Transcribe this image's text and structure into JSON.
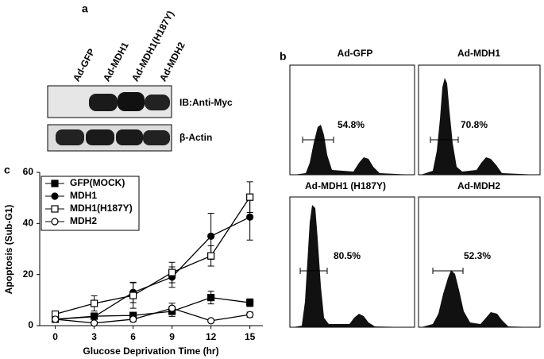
{
  "panel_a": {
    "label": "a",
    "lanes": [
      "Ad-GFP",
      "Ad-MDH1",
      "Ad-MDH1(H187Y)",
      "Ad-MDH2"
    ],
    "blots": [
      "IB:Anti-Myc",
      "β-Actin"
    ]
  },
  "panel_b": {
    "label": "b",
    "panels": [
      {
        "title": "Ad-GFP",
        "percent": "54.8%"
      },
      {
        "title": "Ad-MDH1",
        "percent": "70.8%"
      },
      {
        "title": "Ad-MDH1 (H187Y)",
        "percent": "80.5%"
      },
      {
        "title": "Ad-MDH2",
        "percent": "52.3%"
      }
    ]
  },
  "chart_data": {
    "type": "line",
    "panel_label": "c",
    "x_label": "Glucose Deprivation Time (hr)",
    "y_label": "Apoptosis (Sub-G1)",
    "x": [
      0,
      3,
      6,
      9,
      12,
      15
    ],
    "xlim": [
      -1.2,
      16
    ],
    "xticks": [
      0,
      3,
      6,
      9,
      12,
      15
    ],
    "ylim": [
      0,
      60
    ],
    "yticks": [
      0,
      20,
      40,
      60
    ],
    "series": [
      {
        "name": "GFP(MOCK)",
        "color": "#000000",
        "marker": "square",
        "marker_fill": "#000000",
        "values": [
          2.5,
          3.7,
          4,
          5.6,
          11,
          9
        ],
        "errors": [
          1,
          1,
          1,
          2,
          2.5,
          1.5
        ]
      },
      {
        "name": "MDH1",
        "color": "#000000",
        "marker": "circle",
        "marker_fill": "#000000",
        "values": [
          2.5,
          3.5,
          13,
          19,
          35,
          42.5
        ],
        "errors": [
          1,
          1,
          4,
          4,
          9,
          9
        ]
      },
      {
        "name": "MDH1(H187Y)",
        "color": "#000000",
        "marker": "square",
        "marker_fill": "#ffffff",
        "values": [
          4.5,
          8.7,
          11.8,
          20.8,
          27.3,
          50.3
        ],
        "errors": [
          1,
          3,
          5,
          4,
          4,
          6
        ]
      },
      {
        "name": "MDH2",
        "color": "#000000",
        "marker": "circle",
        "marker_fill": "#ffffff",
        "values": [
          2.5,
          1,
          2.5,
          6.8,
          1.9,
          4.3
        ],
        "errors": [
          1,
          0.5,
          1,
          2,
          0.5,
          1
        ]
      }
    ]
  }
}
